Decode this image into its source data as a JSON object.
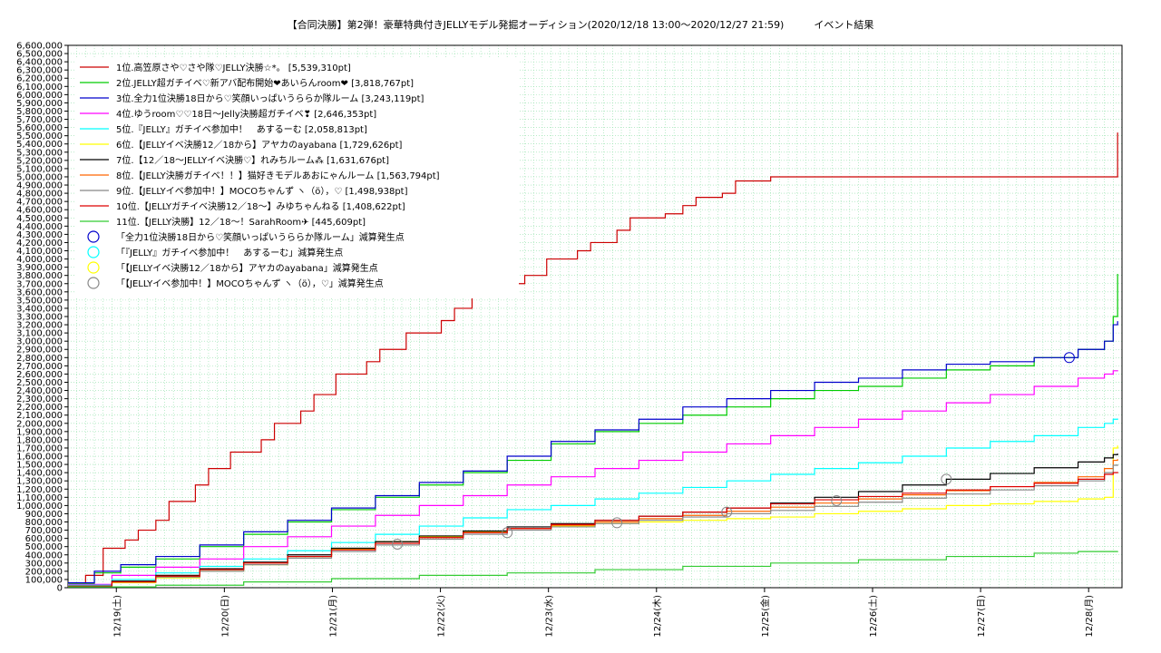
{
  "chart_data": {
    "type": "line",
    "title": "【合同決勝】第2弾！豪華特典付きJELLYモデル発掘オーディション(2020/12/18 13:00～2020/12/27 21:59)　　　イベント結果",
    "xlabel": "",
    "ylabel": "",
    "ylim": [
      0,
      6600000
    ],
    "y_ticks": [
      "0",
      "100,000",
      "200,000",
      "300,000",
      "400,000",
      "500,000",
      "600,000",
      "700,000",
      "800,000",
      "900,000",
      "1,000,000",
      "1,100,000",
      "1,200,000",
      "1,300,000",
      "1,400,000",
      "1,500,000",
      "1,600,000",
      "1,700,000",
      "1,800,000",
      "1,900,000",
      "2,000,000",
      "2,100,000",
      "2,200,000",
      "2,300,000",
      "2,400,000",
      "2,500,000",
      "2,600,000",
      "2,700,000",
      "2,800,000",
      "2,900,000",
      "3,000,000",
      "3,100,000",
      "3,200,000",
      "3,300,000",
      "3,400,000",
      "3,500,000",
      "3,600,000",
      "3,700,000",
      "3,800,000",
      "3,900,000",
      "4,000,000",
      "4,100,000",
      "4,200,000",
      "4,300,000",
      "4,400,000",
      "4,500,000",
      "4,600,000",
      "4,700,000",
      "4,800,000",
      "4,900,000",
      "5,000,000",
      "5,100,000",
      "5,200,000",
      "5,300,000",
      "5,400,000",
      "5,500,000",
      "5,600,000",
      "5,700,000",
      "5,800,000",
      "5,900,000",
      "6,000,000",
      "6,100,000",
      "6,200,000",
      "6,300,000",
      "6,400,000",
      "6,500,000",
      "6,600,000"
    ],
    "x_ticks": [
      "12/19(土)",
      "12/20(日)",
      "12/21(月)",
      "12/22(火)",
      "12/23(水)",
      "12/24(木)",
      "12/25(金)",
      "12/26(土)",
      "12/27(日)",
      "12/28(月)"
    ],
    "x_range": [
      "12/18 13:00",
      "12/28 00:00"
    ],
    "grid": true,
    "legend_position": "top-left",
    "series": [
      {
        "name": "1位.高笠原さや♡さや隊♡JELLY決勝☆*。 [5,539,310pt]",
        "color": "#cc0000",
        "x": [
          0,
          4,
          8,
          13,
          16,
          20,
          23,
          29,
          32,
          37,
          40,
          44,
          47,
          53,
          56,
          61,
          64,
          68,
          71,
          77,
          80,
          85,
          88,
          92,
          95,
          101,
          104,
          109,
          112,
          116,
          119,
          125,
          128,
          133,
          136,
          140,
          143,
          149,
          152,
          157,
          160,
          164,
          167,
          173,
          176,
          181,
          184,
          188,
          191,
          197,
          200,
          205,
          207,
          212,
          215,
          225,
          227,
          232,
          235,
          239
        ],
        "values": [
          50000,
          150000,
          480000,
          580000,
          700000,
          820000,
          1050000,
          1250000,
          1450000,
          1650000,
          1650000,
          1800000,
          2000000,
          2150000,
          2350000,
          2600000,
          2600000,
          2750000,
          2900000,
          3100000,
          3100000,
          3250000,
          3400000,
          3550000,
          3550000,
          3700000,
          3800000,
          4000000,
          4000000,
          4100000,
          4200000,
          4350000,
          4500000,
          4500000,
          4550000,
          4650000,
          4750000,
          4800000,
          4950000,
          4950000,
          5000000,
          5000000,
          5000000,
          5000000,
          5000000,
          5000000,
          5000000,
          5000000,
          5000000,
          5000000,
          5000000,
          5000000,
          5000000,
          5000000,
          5000000,
          5000000,
          5000000,
          5000000,
          5000000,
          5539310
        ]
      },
      {
        "name": "2位.JELLY超ガチイベ♡新アバ配布開始❤あいらんroom❤ [3,818,767pt]",
        "color": "#00cc00",
        "x": [
          0,
          6,
          12,
          20,
          30,
          40,
          50,
          60,
          70,
          80,
          90,
          100,
          110,
          120,
          130,
          140,
          150,
          160,
          170,
          180,
          190,
          200,
          210,
          220,
          230,
          236,
          238,
          239
        ],
        "values": [
          50000,
          180000,
          250000,
          350000,
          500000,
          650000,
          800000,
          950000,
          1100000,
          1250000,
          1400000,
          1550000,
          1750000,
          1900000,
          2000000,
          2100000,
          2200000,
          2300000,
          2400000,
          2450000,
          2550000,
          2650000,
          2700000,
          2800000,
          2900000,
          3000000,
          3300000,
          3818767
        ]
      },
      {
        "name": "3位.全力1位決勝18日から♡笑顔いっぱいうららか隊ルーム [3,243,119pt]",
        "color": "#0000cc",
        "x": [
          0,
          6,
          12,
          20,
          30,
          40,
          50,
          60,
          70,
          80,
          90,
          100,
          110,
          120,
          130,
          140,
          150,
          160,
          170,
          180,
          190,
          200,
          210,
          220,
          230,
          236,
          238,
          239
        ],
        "values": [
          60000,
          200000,
          280000,
          380000,
          520000,
          680000,
          820000,
          970000,
          1120000,
          1280000,
          1420000,
          1600000,
          1780000,
          1920000,
          2050000,
          2200000,
          2300000,
          2400000,
          2500000,
          2550000,
          2650000,
          2720000,
          2750000,
          2800000,
          2900000,
          3000000,
          3200000,
          3243119
        ]
      },
      {
        "name": "4位.ゆうroom♡♡18日〜Jelly決勝超ガチイベ❣ [2,646,353pt]",
        "color": "#ff00ff",
        "x": [
          0,
          10,
          20,
          30,
          40,
          50,
          60,
          70,
          80,
          90,
          100,
          110,
          120,
          130,
          140,
          150,
          160,
          170,
          180,
          190,
          200,
          210,
          220,
          230,
          236,
          238,
          239
        ],
        "values": [
          40000,
          150000,
          250000,
          350000,
          500000,
          620000,
          750000,
          880000,
          1000000,
          1120000,
          1250000,
          1350000,
          1450000,
          1550000,
          1650000,
          1750000,
          1850000,
          1950000,
          2050000,
          2150000,
          2250000,
          2350000,
          2450000,
          2550000,
          2600000,
          2640000,
          2646353
        ]
      },
      {
        "name": "5位.『JELLY』ガチイベ参加中！　あするーむ [2,058,813pt]",
        "color": "#00ffff",
        "x": [
          0,
          10,
          20,
          30,
          40,
          50,
          60,
          70,
          80,
          90,
          100,
          110,
          120,
          130,
          140,
          150,
          160,
          170,
          180,
          190,
          200,
          210,
          220,
          230,
          236,
          238,
          239
        ],
        "values": [
          30000,
          100000,
          180000,
          260000,
          350000,
          450000,
          550000,
          650000,
          750000,
          850000,
          950000,
          1000000,
          1080000,
          1150000,
          1220000,
          1300000,
          1380000,
          1450000,
          1520000,
          1600000,
          1700000,
          1780000,
          1850000,
          1950000,
          2000000,
          2050000,
          2058813
        ]
      },
      {
        "name": "6位.【JELLYイベ決勝12／18から】アヤカのayabana [1,729,626pt]",
        "color": "#ffff00",
        "x": [
          0,
          10,
          20,
          30,
          40,
          50,
          60,
          70,
          80,
          90,
          100,
          110,
          120,
          130,
          140,
          150,
          160,
          170,
          180,
          190,
          200,
          210,
          220,
          230,
          236,
          238,
          239
        ],
        "values": [
          20000,
          60000,
          120000,
          200000,
          280000,
          380000,
          470000,
          560000,
          620000,
          680000,
          720000,
          750000,
          780000,
          800000,
          820000,
          840000,
          860000,
          900000,
          930000,
          960000,
          1000000,
          1020000,
          1050000,
          1080000,
          1100000,
          1700000,
          1729626
        ]
      },
      {
        "name": "7位.【12／18〜JELLYイベ決勝♡】れみちルーム⁂ [1,631,676pt]",
        "color": "#000000",
        "x": [
          0,
          10,
          20,
          30,
          40,
          50,
          60,
          70,
          80,
          90,
          100,
          110,
          120,
          130,
          140,
          150,
          160,
          170,
          180,
          190,
          200,
          210,
          220,
          230,
          236,
          238,
          239
        ],
        "values": [
          20000,
          80000,
          150000,
          230000,
          310000,
          400000,
          480000,
          560000,
          630000,
          690000,
          740000,
          780000,
          820000,
          870000,
          920000,
          970000,
          1030000,
          1100000,
          1170000,
          1250000,
          1320000,
          1390000,
          1460000,
          1530000,
          1580000,
          1620000,
          1631676
        ]
      },
      {
        "name": "8位.【JELLY決勝ガチイベ！！】猫好きモデルあおにゃんルーム [1,563,794pt]",
        "color": "#ff6600",
        "x": [
          0,
          10,
          20,
          30,
          40,
          50,
          60,
          70,
          80,
          90,
          100,
          110,
          120,
          130,
          140,
          150,
          160,
          170,
          180,
          190,
          200,
          210,
          220,
          230,
          236,
          238,
          239
        ],
        "values": [
          20000,
          70000,
          140000,
          220000,
          300000,
          380000,
          460000,
          540000,
          610000,
          670000,
          720000,
          760000,
          800000,
          840000,
          880000,
          930000,
          980000,
          1030000,
          1080000,
          1130000,
          1180000,
          1230000,
          1280000,
          1350000,
          1450000,
          1550000,
          1563794
        ]
      },
      {
        "name": "9位.【JELLYイベ参加中！】MOCOちゃんず ヽ（ö），♡ [1,498,938pt]",
        "color": "#888888",
        "x": [
          0,
          10,
          20,
          30,
          40,
          50,
          60,
          70,
          80,
          90,
          100,
          110,
          120,
          130,
          140,
          150,
          160,
          170,
          180,
          190,
          200,
          210,
          220,
          230,
          236,
          238,
          239
        ],
        "values": [
          20000,
          70000,
          130000,
          200000,
          280000,
          360000,
          440000,
          520000,
          590000,
          650000,
          700000,
          740000,
          780000,
          820000,
          860000,
          900000,
          940000,
          990000,
          1040000,
          1090000,
          1140000,
          1190000,
          1240000,
          1300000,
          1400000,
          1490000,
          1498938
        ]
      },
      {
        "name": "10位.【JELLYガチイベ決勝12／18〜】みゆちゃんねる [1,408,622pt]",
        "color": "#dd0000",
        "x": [
          0,
          10,
          20,
          30,
          40,
          50,
          60,
          70,
          80,
          90,
          100,
          110,
          120,
          130,
          140,
          150,
          160,
          170,
          180,
          190,
          200,
          210,
          220,
          230,
          236,
          238,
          239
        ],
        "values": [
          20000,
          70000,
          140000,
          220000,
          300000,
          380000,
          460000,
          540000,
          610000,
          670000,
          720000,
          770000,
          820000,
          870000,
          920000,
          970000,
          1020000,
          1070000,
          1110000,
          1150000,
          1190000,
          1230000,
          1270000,
          1320000,
          1380000,
          1400000,
          1408622
        ]
      },
      {
        "name": "11位.【JELLY決勝】12／18〜！SarahRoom✈ [445,609pt]",
        "color": "#33cc33",
        "x": [
          0,
          20,
          40,
          60,
          80,
          100,
          120,
          140,
          160,
          180,
          200,
          220,
          230,
          239
        ],
        "values": [
          10000,
          30000,
          70000,
          110000,
          150000,
          180000,
          220000,
          260000,
          300000,
          340000,
          380000,
          420000,
          440000,
          445609
        ]
      }
    ],
    "annotations": [
      {
        "label": "「全力1位決勝18日から♡笑顔いっぱいうららか隊ルーム」減算発生点",
        "color": "#0000cc",
        "points": [
          [
            228,
            2800000
          ]
        ]
      },
      {
        "label": "「『JELLY』ガチイベ参加中！　あするーむ」減算発生点",
        "color": "#00ffff",
        "points": []
      },
      {
        "label": "「【JELLYイベ決勝12／18から】アヤカのayabana」減算発生点",
        "color": "#ffff00",
        "points": []
      },
      {
        "label": "「【JELLYイベ参加中！】MOCOちゃんず ヽ（ö），♡」減算発生点",
        "color": "#888888",
        "points": [
          [
            75,
            530000
          ],
          [
            100,
            670000
          ],
          [
            125,
            790000
          ],
          [
            150,
            920000
          ],
          [
            175,
            1060000
          ],
          [
            200,
            1320000
          ]
        ]
      }
    ]
  }
}
